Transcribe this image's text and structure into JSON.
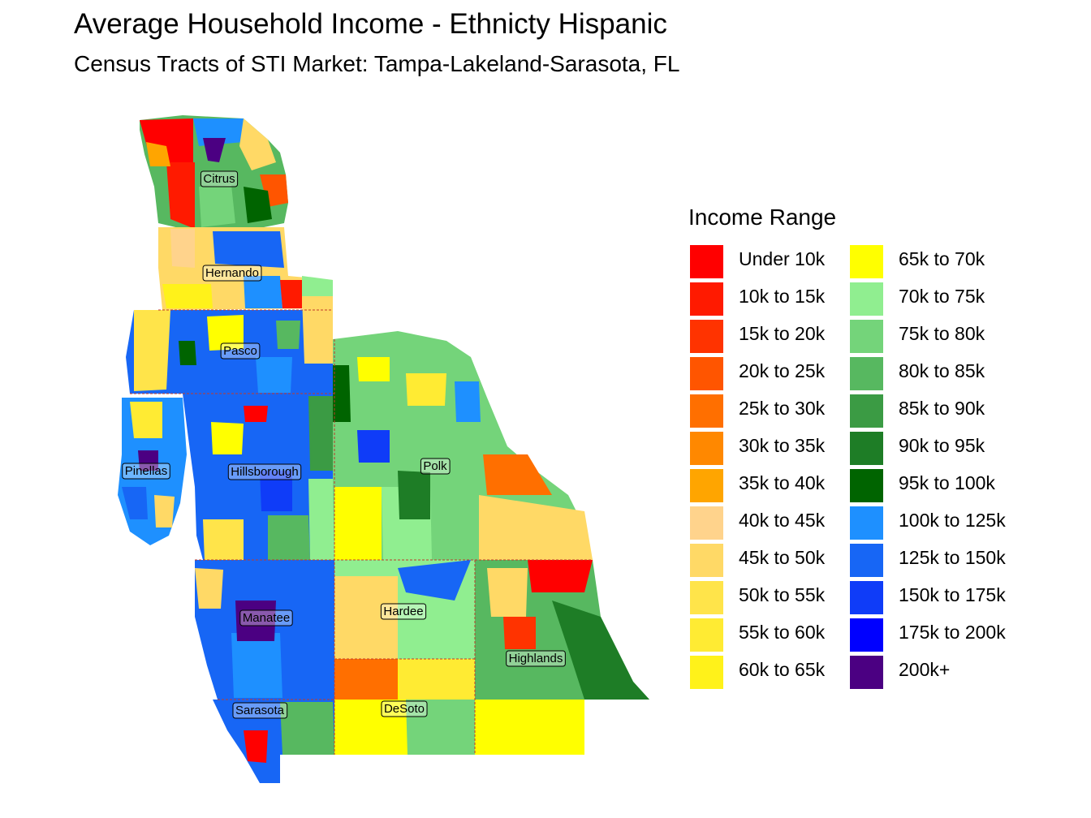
{
  "title": "Average Household Income - Ethnicty Hispanic",
  "subtitle": "Census Tracts of STI Market: Tampa-Lakeland-Sarasota, FL",
  "legend": {
    "title": "Income Range",
    "items": [
      {
        "label": "Under 10k",
        "color": "#ff0000"
      },
      {
        "label": "10k to 15k",
        "color": "#ff1a00"
      },
      {
        "label": "15k to 20k",
        "color": "#ff3300"
      },
      {
        "label": "20k to 25k",
        "color": "#ff5500"
      },
      {
        "label": "25k to 30k",
        "color": "#ff6f00"
      },
      {
        "label": "30k to 35k",
        "color": "#ff8800"
      },
      {
        "label": "35k to 40k",
        "color": "#ffa500"
      },
      {
        "label": "40k to 45k",
        "color": "#ffd38c"
      },
      {
        "label": "45k to 50k",
        "color": "#ffd966"
      },
      {
        "label": "50k to 55k",
        "color": "#ffe44a"
      },
      {
        "label": "55k to 60k",
        "color": "#ffeb33"
      },
      {
        "label": "60k to 65k",
        "color": "#fff21a"
      },
      {
        "label": "65k to 70k",
        "color": "#ffff00"
      },
      {
        "label": "70k to 75k",
        "color": "#90ee90"
      },
      {
        "label": "75k to 80k",
        "color": "#74d47a"
      },
      {
        "label": "80k to 85k",
        "color": "#57b860"
      },
      {
        "label": "85k to 90k",
        "color": "#3b9b44"
      },
      {
        "label": "90k to 95k",
        "color": "#1e7d26"
      },
      {
        "label": "95k to 100k",
        "color": "#006400"
      },
      {
        "label": "100k to 125k",
        "color": "#1e90ff"
      },
      {
        "label": "125k to 150k",
        "color": "#1766f5"
      },
      {
        "label": "150k to 175k",
        "color": "#0f3cf8"
      },
      {
        "label": "175k to 200k",
        "color": "#0000ff"
      },
      {
        "label": "200k+",
        "color": "#4b0082"
      }
    ]
  },
  "counties": [
    {
      "name": "Citrus"
    },
    {
      "name": "Hernando"
    },
    {
      "name": "Pasco"
    },
    {
      "name": "Pinellas"
    },
    {
      "name": "Hillsborough"
    },
    {
      "name": "Polk"
    },
    {
      "name": "Manatee"
    },
    {
      "name": "Hardee"
    },
    {
      "name": "Highlands"
    },
    {
      "name": "Sarasota"
    },
    {
      "name": "DeSoto"
    }
  ]
}
